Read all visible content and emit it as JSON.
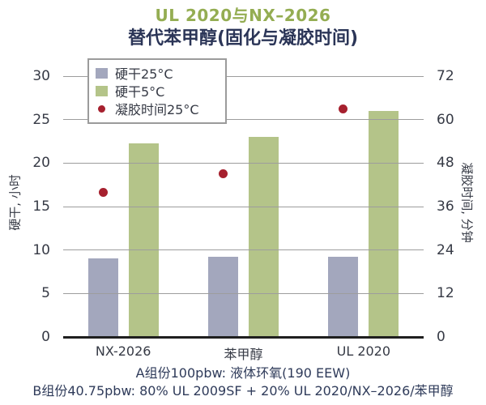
{
  "title": {
    "line1": "UL 2020与NX–2026",
    "line2": "替代苯甲醇(固化与凝胶时间)"
  },
  "footer": {
    "line1": "A组份100pbw: 液体环氧(190 EEW)",
    "line2": "B组份40.75pbw: 80% UL 2009SF + 20% UL 2020/NX–2026/苯甲醇"
  },
  "colors": {
    "title_green": "#94ad52",
    "navy_text": "#2b3557",
    "tick_text": "#363a45",
    "gridline": "#9d9d9d",
    "axis_line": "#1f1f1f",
    "legend_border": "#9b9b9b",
    "bar_gray": "#a3a7bd",
    "bar_green": "#b4c489",
    "dot_red": "#a6202e"
  },
  "chart_data": {
    "type": "bar",
    "title": "UL 2020与NX–2026 替代苯甲醇(固化与凝胶时间)",
    "categories": [
      "NX-2026",
      "苯甲醇",
      "UL 2020"
    ],
    "series": [
      {
        "name": "硬干25°C",
        "type": "bar",
        "axis": "left",
        "color": "#a3a7bd",
        "values": [
          9.0,
          9.2,
          9.2
        ]
      },
      {
        "name": "硬干5°C",
        "type": "bar",
        "axis": "left",
        "color": "#b4c489",
        "values": [
          22.3,
          23.0,
          26.0
        ]
      },
      {
        "name": "凝胶时间25°C",
        "type": "point",
        "axis": "right",
        "color": "#a6202e",
        "values": [
          40,
          45,
          63
        ]
      }
    ],
    "left_axis": {
      "label": "硬干, 小时",
      "min": 0,
      "max": 30,
      "ticks": [
        0,
        5,
        10,
        15,
        20,
        25,
        30
      ]
    },
    "right_axis": {
      "label": "凝胶时间, 分钟",
      "min": 0,
      "max": 72,
      "ticks": [
        0,
        12,
        24,
        36,
        48,
        60,
        72
      ]
    },
    "grid": true,
    "legend_position": "top-left-inside"
  }
}
